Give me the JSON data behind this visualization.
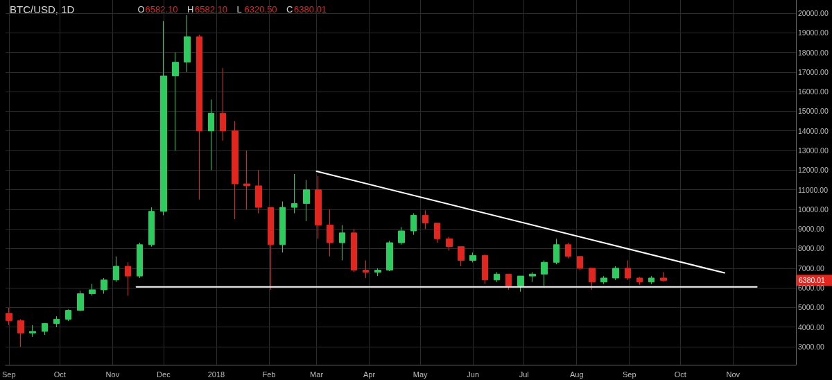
{
  "chart_data": {
    "type": "candlestick",
    "title": "BTC/USD, 1D",
    "annotations": [
      "O6582.10",
      "H6582.10",
      "L6320.50",
      "C6380.01",
      "6380.01"
    ],
    "x": [
      "2017-09-01",
      "2017-09-08",
      "2017-09-15",
      "2017-09-22",
      "2017-09-29",
      "2017-10-06",
      "2017-10-13",
      "2017-10-20",
      "2017-10-27",
      "2017-11-03",
      "2017-11-10",
      "2017-11-17",
      "2017-11-24",
      "2017-12-01",
      "2017-12-08",
      "2017-12-15",
      "2017-12-22",
      "2017-12-29",
      "2018-01-05",
      "2018-01-12",
      "2018-01-19",
      "2018-01-26",
      "2018-02-02",
      "2018-02-09",
      "2018-02-16",
      "2018-02-23",
      "2018-03-02",
      "2018-03-09",
      "2018-03-16",
      "2018-03-23",
      "2018-03-30",
      "2018-04-06",
      "2018-04-13",
      "2018-04-20",
      "2018-04-27",
      "2018-05-04",
      "2018-05-11",
      "2018-05-18",
      "2018-05-25",
      "2018-06-01",
      "2018-06-08",
      "2018-06-15",
      "2018-06-22",
      "2018-06-29",
      "2018-07-06",
      "2018-07-13",
      "2018-07-20",
      "2018-07-27",
      "2018-08-03",
      "2018-08-10",
      "2018-08-17",
      "2018-08-24",
      "2018-08-31",
      "2018-09-07",
      "2018-09-14",
      "2018-09-21"
    ],
    "series": [
      {
        "ohlc": [
          [
            4700,
            4980,
            4100,
            4330
          ],
          [
            4330,
            4400,
            3000,
            3700
          ],
          [
            3700,
            4100,
            3500,
            3780
          ],
          [
            3780,
            4200,
            3600,
            4180
          ],
          [
            4180,
            4550,
            4000,
            4400
          ],
          [
            4400,
            4900,
            4300,
            4850
          ],
          [
            4850,
            5850,
            4800,
            5700
          ],
          [
            5700,
            6200,
            5600,
            5900
          ],
          [
            5900,
            6500,
            5700,
            6400
          ],
          [
            6400,
            7600,
            6300,
            7100
          ],
          [
            7100,
            7300,
            5600,
            6600
          ],
          [
            6600,
            8300,
            6500,
            8200
          ],
          [
            8200,
            10100,
            8100,
            9900
          ],
          [
            9900,
            19600,
            9700,
            16800
          ],
          [
            16800,
            18000,
            13000,
            17500
          ],
          [
            17500,
            19900,
            17000,
            18800
          ],
          [
            18800,
            18900,
            10500,
            14000
          ],
          [
            14000,
            15600,
            12000,
            14900
          ],
          [
            14900,
            17200,
            13500,
            14000
          ],
          [
            14000,
            14500,
            9500,
            11300
          ],
          [
            11300,
            13000,
            10000,
            11200
          ],
          [
            11200,
            12000,
            9800,
            10100
          ],
          [
            10100,
            10100,
            5900,
            8200
          ],
          [
            8200,
            10400,
            7800,
            10100
          ],
          [
            10100,
            11800,
            9800,
            10300
          ],
          [
            10300,
            11500,
            9400,
            11000
          ],
          [
            11000,
            11700,
            8500,
            9200
          ],
          [
            9200,
            10000,
            7600,
            8300
          ],
          [
            8300,
            9200,
            7400,
            8800
          ],
          [
            8800,
            9000,
            6800,
            6900
          ],
          [
            6900,
            7400,
            6500,
            6800
          ],
          [
            6800,
            7000,
            6600,
            6900
          ],
          [
            6900,
            8400,
            6850,
            8300
          ],
          [
            8300,
            9100,
            8200,
            8900
          ],
          [
            8900,
            9800,
            8700,
            9700
          ],
          [
            9700,
            9950,
            9000,
            9300
          ],
          [
            9300,
            9300,
            8300,
            8500
          ],
          [
            8500,
            8600,
            7900,
            8100
          ],
          [
            8100,
            8100,
            7100,
            7400
          ],
          [
            7400,
            7800,
            7300,
            7650
          ],
          [
            7650,
            7700,
            6200,
            6400
          ],
          [
            6400,
            6800,
            6300,
            6700
          ],
          [
            6700,
            6700,
            5900,
            6100
          ],
          [
            6100,
            6600,
            5800,
            6600
          ],
          [
            6600,
            6800,
            6300,
            6700
          ],
          [
            6700,
            7400,
            6100,
            7300
          ],
          [
            7300,
            8500,
            7200,
            8200
          ],
          [
            8200,
            8300,
            7500,
            7600
          ],
          [
            7600,
            7600,
            6900,
            7000
          ],
          [
            7000,
            7000,
            5900,
            6300
          ],
          [
            6300,
            6600,
            6200,
            6500
          ],
          [
            6500,
            7100,
            6400,
            7000
          ],
          [
            7000,
            7400,
            6400,
            6500
          ],
          [
            6500,
            6550,
            6150,
            6300
          ],
          [
            6300,
            6600,
            6200,
            6500
          ],
          [
            6500,
            6800,
            6320.5,
            6380.01
          ]
        ],
        "colors": [
          "#e0261f",
          "#e0261f",
          "#2ecc5f",
          "#2ecc5f",
          "#2ecc5f",
          "#2ecc5f",
          "#2ecc5f",
          "#2ecc5f",
          "#2ecc5f",
          "#2ecc5f",
          "#e0261f",
          "#2ecc5f",
          "#2ecc5f",
          "#2ecc5f",
          "#2ecc5f",
          "#2ecc5f",
          "#e0261f",
          "#2ecc5f",
          "#e0261f",
          "#e0261f",
          "#e0261f",
          "#e0261f",
          "#e0261f",
          "#2ecc5f",
          "#2ecc5f",
          "#2ecc5f",
          "#e0261f",
          "#e0261f",
          "#2ecc5f",
          "#e0261f",
          "#e0261f",
          "#2ecc5f",
          "#2ecc5f",
          "#2ecc5f",
          "#2ecc5f",
          "#e0261f",
          "#e0261f",
          "#e0261f",
          "#e0261f",
          "#2ecc5f",
          "#e0261f",
          "#2ecc5f",
          "#e0261f",
          "#2ecc5f",
          "#2ecc5f",
          "#2ecc5f",
          "#2ecc5f",
          "#e0261f",
          "#e0261f",
          "#e0261f",
          "#2ecc5f",
          "#2ecc5f",
          "#e0261f",
          "#e0261f",
          "#2ecc5f",
          "#e0261f"
        ]
      },
      {
        "type": "line",
        "color": "#ffffff",
        "x": [
          "2018-03-01",
          "2018-10-27"
        ],
        "values": [
          11940,
          6760
        ]
      },
      {
        "type": "line",
        "color": "#ffffff",
        "x": [
          "2017-11-15",
          "2018-11-15"
        ],
        "values": [
          6050,
          6050
        ]
      }
    ],
    "xlim": [
      "2017-08-30",
      "2018-12-08"
    ],
    "xticks": [
      {
        "value": "2017-09-01",
        "label": "Sep"
      },
      {
        "value": "2017-10-01",
        "label": "Oct"
      },
      {
        "value": "2017-11-01",
        "label": "Nov"
      },
      {
        "value": "2017-12-01",
        "label": "Dec"
      },
      {
        "value": "2018-01-01",
        "label": "2018"
      },
      {
        "value": "2018-02-01",
        "label": "Feb"
      },
      {
        "value": "2018-03-01",
        "label": "Mar"
      },
      {
        "value": "2018-04-01",
        "label": "Apr"
      },
      {
        "value": "2018-05-01",
        "label": "May"
      },
      {
        "value": "2018-06-01",
        "label": "Jun"
      },
      {
        "value": "2018-07-01",
        "label": "Jul"
      },
      {
        "value": "2018-08-01",
        "label": "Aug"
      },
      {
        "value": "2018-09-01",
        "label": "Sep"
      },
      {
        "value": "2018-10-01",
        "label": "Oct"
      },
      {
        "value": "2018-11-01",
        "label": "Nov"
      }
    ],
    "ylim": [
      2080,
      20670
    ],
    "yticks": [
      {
        "value": 3000,
        "label": "3000.00"
      },
      {
        "value": 4000,
        "label": "4000.00"
      },
      {
        "value": 5000,
        "label": "5000.00"
      },
      {
        "value": 6000,
        "label": "6000.00"
      },
      {
        "value": 7000,
        "label": "7000.00"
      },
      {
        "value": 8000,
        "label": "8000.00"
      },
      {
        "value": 9000,
        "label": "9000.00"
      },
      {
        "value": 10000,
        "label": "10000.00"
      },
      {
        "value": 11000,
        "label": "11000.00"
      },
      {
        "value": 12000,
        "label": "12000.00"
      },
      {
        "value": 13000,
        "label": "13000.00"
      },
      {
        "value": 14000,
        "label": "14000.00"
      },
      {
        "value": 15000,
        "label": "15000.00"
      },
      {
        "value": 16000,
        "label": "16000.00"
      },
      {
        "value": 17000,
        "label": "17000.00"
      },
      {
        "value": 18000,
        "label": "18000.00"
      },
      {
        "value": 19000,
        "label": "19000.00"
      },
      {
        "value": 20000,
        "label": "20000.00"
      }
    ],
    "grid": true
  }
}
